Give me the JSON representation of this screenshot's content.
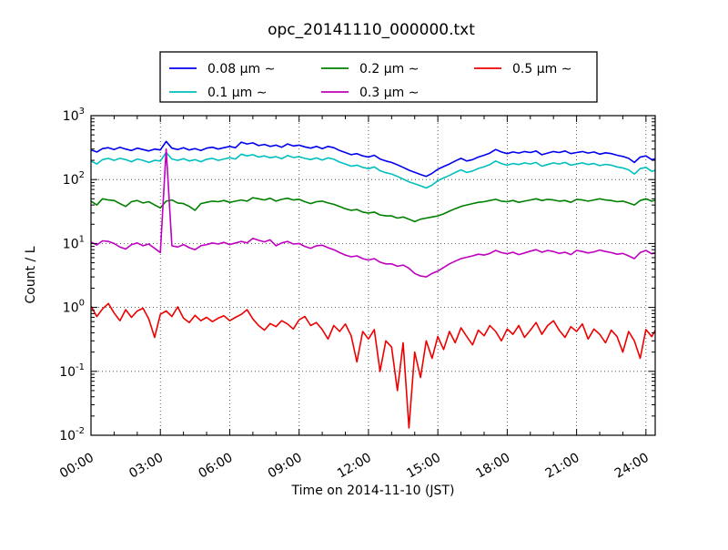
{
  "title": "opc_20141110_000000.txt",
  "chart_data": {
    "type": "line",
    "title": "opc_20141110_000000.txt",
    "xlabel": "Time on 2014-11-10 (JST)",
    "ylabel": "Count / L",
    "yscale": "log",
    "ylim": [
      0.01,
      1000
    ],
    "xlim_hours": [
      0,
      24.4
    ],
    "grid": true,
    "legend_position": "top-center",
    "x_major_ticks": [
      "00:00",
      "03:00",
      "06:00",
      "09:00",
      "12:00",
      "15:00",
      "18:00",
      "21:00",
      "24:00"
    ],
    "x_tick_hours": [
      0,
      3,
      6,
      9,
      12,
      15,
      18,
      21,
      24
    ],
    "x_minor_step_hours": 1,
    "y_tick_exponents": [
      -2,
      -1,
      0,
      1,
      2,
      3
    ],
    "x_start_hours": 0,
    "x_step_hours": 0.25,
    "series": [
      {
        "name": "0.08 μm ∼",
        "color": "#0000ee",
        "values": [
          290,
          270,
          305,
          315,
          295,
          320,
          300,
          285,
          310,
          295,
          280,
          300,
          290,
          395,
          310,
          295,
          315,
          290,
          305,
          285,
          310,
          320,
          300,
          315,
          330,
          315,
          385,
          360,
          375,
          340,
          355,
          330,
          345,
          320,
          360,
          335,
          345,
          325,
          310,
          330,
          305,
          330,
          315,
          285,
          265,
          245,
          255,
          235,
          225,
          240,
          210,
          195,
          185,
          170,
          155,
          140,
          130,
          120,
          112,
          125,
          145,
          160,
          175,
          195,
          215,
          195,
          205,
          225,
          240,
          260,
          295,
          270,
          255,
          270,
          260,
          275,
          265,
          280,
          245,
          260,
          275,
          265,
          280,
          255,
          265,
          275,
          260,
          270,
          250,
          262,
          255,
          240,
          230,
          215,
          185,
          225,
          235,
          205,
          215
        ]
      },
      {
        "name": "0.1 μm ∼",
        "color": "#00bfbf",
        "values": [
          195,
          175,
          205,
          215,
          200,
          215,
          205,
          190,
          210,
          200,
          185,
          200,
          195,
          265,
          210,
          200,
          212,
          195,
          205,
          190,
          208,
          215,
          200,
          210,
          220,
          210,
          250,
          235,
          245,
          225,
          235,
          220,
          228,
          212,
          238,
          222,
          228,
          215,
          205,
          218,
          202,
          218,
          208,
          188,
          175,
          162,
          168,
          155,
          148,
          158,
          138,
          128,
          122,
          112,
          102,
          92,
          86,
          80,
          74,
          82,
          96,
          106,
          116,
          129,
          142,
          129,
          136,
          149,
          159,
          172,
          195,
          178,
          168,
          178,
          172,
          182,
          175,
          185,
          162,
          172,
          182,
          175,
          185,
          168,
          175,
          182,
          172,
          178,
          165,
          173,
          168,
          158,
          152,
          142,
          122,
          148,
          155,
          135,
          142
        ]
      },
      {
        "name": "0.2 μm ∼",
        "color": "#008000",
        "values": [
          46,
          40,
          50,
          48,
          47,
          42,
          38,
          45,
          47,
          43,
          45,
          40,
          36,
          46,
          48,
          43,
          42,
          38,
          33,
          42,
          44,
          46,
          45,
          47,
          44,
          46,
          48,
          46,
          52,
          50,
          48,
          51,
          46,
          49,
          51,
          48,
          49,
          45,
          42,
          45,
          46,
          43,
          41,
          38,
          35,
          33,
          34,
          31,
          30,
          31,
          28,
          27,
          27,
          25,
          26,
          24,
          22,
          24,
          25,
          26,
          27,
          29,
          32,
          35,
          38,
          40,
          42,
          44,
          45,
          47,
          49,
          46,
          45,
          47,
          44,
          46,
          48,
          50,
          47,
          49,
          48,
          46,
          47,
          44,
          49,
          48,
          46,
          48,
          50,
          48,
          47,
          45,
          46,
          43,
          40,
          47,
          50,
          46,
          48
        ]
      },
      {
        "name": "0.3 μm ∼",
        "color": "#bf00bf",
        "values": [
          10.5,
          9.5,
          11,
          10.8,
          10,
          8.8,
          8.2,
          9.6,
          10.2,
          9.2,
          9.8,
          8.4,
          7.2,
          300,
          9.2,
          8.8,
          9.6,
          8.6,
          8.0,
          9.2,
          9.6,
          10.2,
          9.8,
          10.4,
          9.6,
          10.2,
          10.8,
          10.2,
          12,
          11.2,
          10.6,
          11.4,
          9.2,
          10.2,
          10.8,
          9.8,
          10,
          9.0,
          8.4,
          9.2,
          9.4,
          8.6,
          8.0,
          7.2,
          6.6,
          6.2,
          6.4,
          5.8,
          5.5,
          5.8,
          5.1,
          4.8,
          4.8,
          4.4,
          4.6,
          4.1,
          3.4,
          3.1,
          3.0,
          3.4,
          3.7,
          4.2,
          4.8,
          5.3,
          5.8,
          6.1,
          6.4,
          6.8,
          6.6,
          7.0,
          7.8,
          7.2,
          6.9,
          7.3,
          6.7,
          7.1,
          7.6,
          8.0,
          7.3,
          7.8,
          7.5,
          7.0,
          7.3,
          6.7,
          7.8,
          7.5,
          7.1,
          7.4,
          7.9,
          7.5,
          7.2,
          6.8,
          7.0,
          6.4,
          5.8,
          7.2,
          7.8,
          6.9,
          7.3
        ]
      },
      {
        "name": "0.5 μm ∼",
        "color": "#ee0000",
        "values": [
          1.05,
          0.72,
          0.95,
          1.15,
          0.82,
          0.62,
          0.92,
          0.7,
          0.88,
          0.97,
          0.66,
          0.34,
          0.78,
          0.88,
          0.72,
          1.02,
          0.68,
          0.58,
          0.75,
          0.62,
          0.7,
          0.6,
          0.68,
          0.74,
          0.62,
          0.7,
          0.78,
          0.92,
          0.66,
          0.52,
          0.44,
          0.56,
          0.5,
          0.62,
          0.55,
          0.46,
          0.64,
          0.72,
          0.52,
          0.58,
          0.45,
          0.32,
          0.52,
          0.42,
          0.55,
          0.36,
          0.14,
          0.42,
          0.32,
          0.45,
          0.1,
          0.3,
          0.24,
          0.05,
          0.28,
          0.013,
          0.2,
          0.08,
          0.3,
          0.16,
          0.35,
          0.22,
          0.42,
          0.28,
          0.48,
          0.35,
          0.26,
          0.44,
          0.36,
          0.52,
          0.42,
          0.3,
          0.46,
          0.38,
          0.52,
          0.34,
          0.44,
          0.58,
          0.38,
          0.52,
          0.62,
          0.44,
          0.34,
          0.5,
          0.42,
          0.55,
          0.32,
          0.46,
          0.38,
          0.28,
          0.44,
          0.35,
          0.2,
          0.42,
          0.3,
          0.16,
          0.45,
          0.35,
          0.5
        ]
      }
    ]
  }
}
